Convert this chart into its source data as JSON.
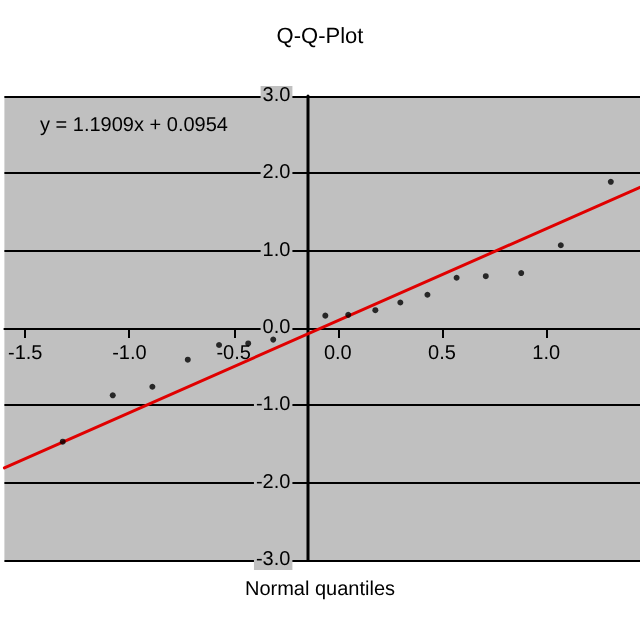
{
  "chart_data": {
    "type": "scatter",
    "title": "Q-Q-Plot",
    "annotations": [
      "y = 1.1909x + 0.0954",
      "Normal quantiles"
    ],
    "xlim": [
      -1.6,
      1.45
    ],
    "ylim": [
      -3,
      3
    ],
    "xticks": [
      {
        "value": -1.5,
        "label": "-1.5"
      },
      {
        "value": -1,
        "label": "-1.0"
      },
      {
        "value": -0.5,
        "label": "-0.5"
      },
      {
        "value": 0,
        "label": "0.0"
      },
      {
        "value": 0.5,
        "label": "0.5"
      },
      {
        "value": 1,
        "label": "1.0"
      }
    ],
    "yticks": [
      {
        "value": -3,
        "label": "-3.0"
      },
      {
        "value": -2,
        "label": "-2.0"
      },
      {
        "value": -1,
        "label": "-1.0"
      },
      {
        "value": 0,
        "label": "0.0"
      },
      {
        "value": 1,
        "label": "1.0"
      },
      {
        "value": 2,
        "label": "2.0"
      },
      {
        "value": 3,
        "label": "3.0"
      }
    ],
    "grid": "y",
    "marker": "circle",
    "series": [
      {
        "type": "scatter",
        "color": "#000000",
        "x": [
          -1.32,
          -1.08,
          -0.89,
          -0.72,
          -0.57,
          -0.43,
          -0.31,
          -0.06,
          0.05,
          0.18,
          0.3,
          0.43,
          0.57,
          0.71,
          0.88,
          1.07,
          1.31
        ],
        "values": [
          -1.47,
          -0.87,
          -0.76,
          -0.41,
          -0.22,
          -0.2,
          -0.15,
          0.16,
          0.17,
          0.23,
          0.33,
          0.43,
          0.65,
          0.67,
          0.71,
          1.07,
          1.89
        ]
      },
      {
        "type": "line",
        "color": "#e00000",
        "marker": "none",
        "x": [
          -1.6,
          1.45
        ],
        "values": [
          -1.81,
          1.82
        ]
      }
    ]
  }
}
